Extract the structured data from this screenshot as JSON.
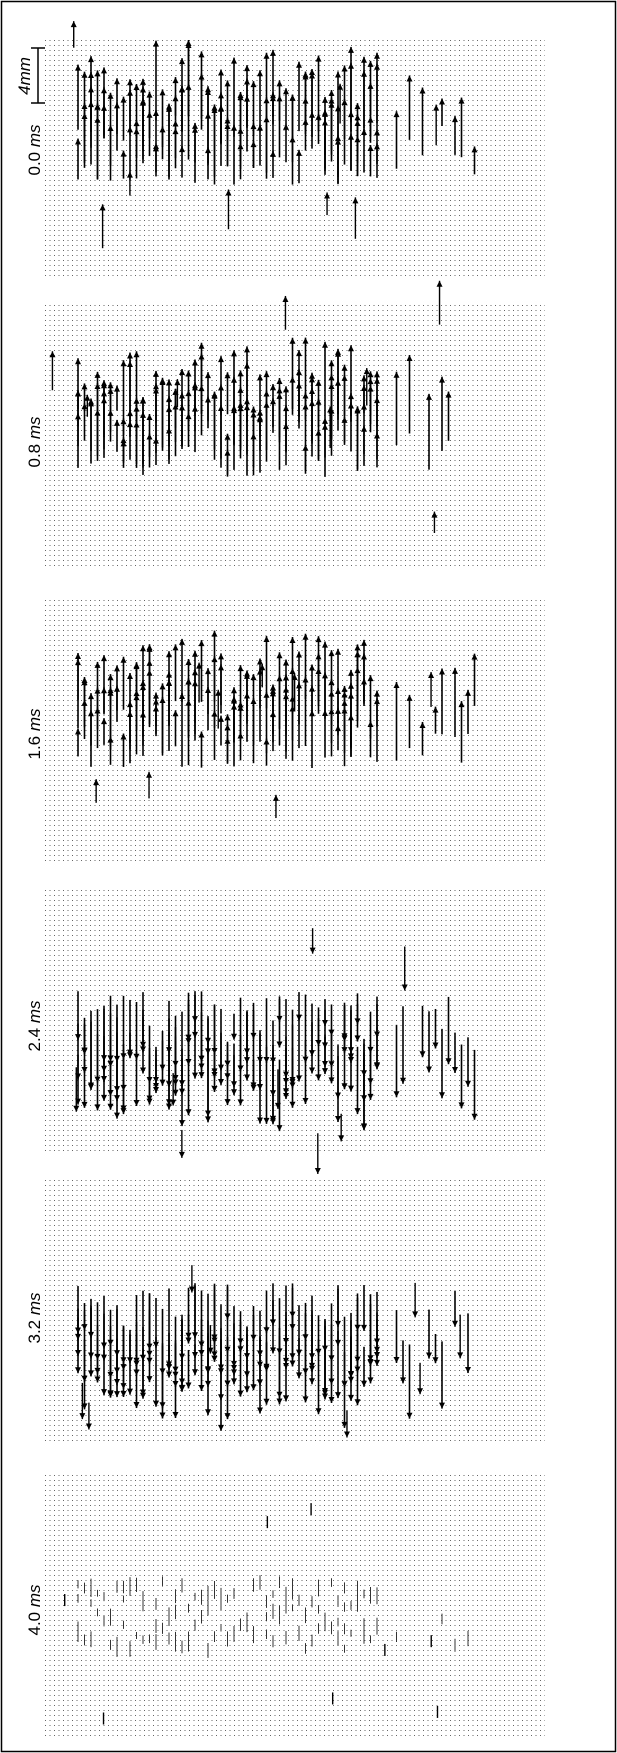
{
  "scale_bar": "4mm",
  "panels": [
    {
      "time": "0.0",
      "unit": "ms"
    },
    {
      "time": "0.8",
      "unit": "ms"
    },
    {
      "time": "1.6",
      "unit": "ms"
    },
    {
      "time": "2.4",
      "unit": "ms"
    },
    {
      "time": "3.2",
      "unit": "ms"
    },
    {
      "time": "4.0",
      "unit": "ms"
    }
  ]
}
